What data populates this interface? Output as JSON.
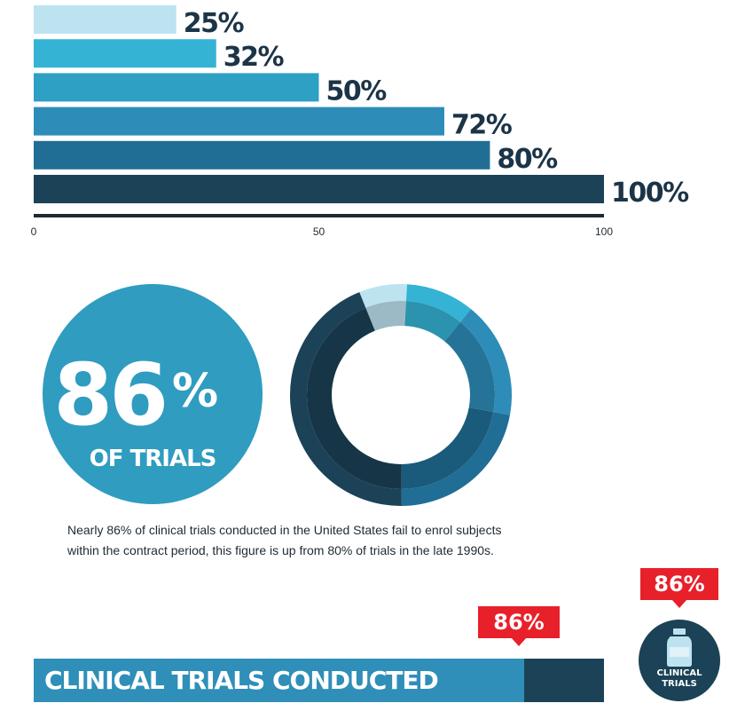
{
  "chart_data": [
    {
      "type": "bar",
      "orientation": "horizontal",
      "values": [
        25,
        32,
        50,
        72,
        80,
        100
      ],
      "value_labels": [
        "25%",
        "32%",
        "50%",
        "72%",
        "80%",
        "100%"
      ],
      "xlim": [
        0,
        100
      ],
      "x_ticks": [
        "0",
        "50",
        "100"
      ],
      "colors": [
        "#bde3f0",
        "#35b3d4",
        "#2da0c4",
        "#2d8db8",
        "#206e95",
        "#1b4256"
      ]
    },
    {
      "type": "pie",
      "style": "double-ring-donut",
      "values": [
        7,
        10,
        17,
        22,
        44
      ],
      "colors": [
        "#bde3f0",
        "#35b3d4",
        "#2d8db8",
        "#206e95",
        "#1b4256"
      ]
    }
  ],
  "stat": {
    "number": "86",
    "percent_sign": "%",
    "caption": "OF TRIALS"
  },
  "description": {
    "line1": "Nearly 86% of clinical trials conducted in the United States fail to enrol subjects",
    "line2": "within the contract period, this figure is up from 80% of trials in the late 1990s."
  },
  "progress": {
    "label": "CLINICAL TRIALS CONDUCTED",
    "value": 86,
    "value_label": "86%"
  },
  "badge": {
    "value_label": "86%",
    "line1": "CLINICAL",
    "line2": "TRIALS",
    "icon": "bottle-icon"
  },
  "colors": {
    "accent_red": "#e8202a",
    "dark_navy": "#1b4256",
    "stat_circle": "#2f9cc0"
  }
}
